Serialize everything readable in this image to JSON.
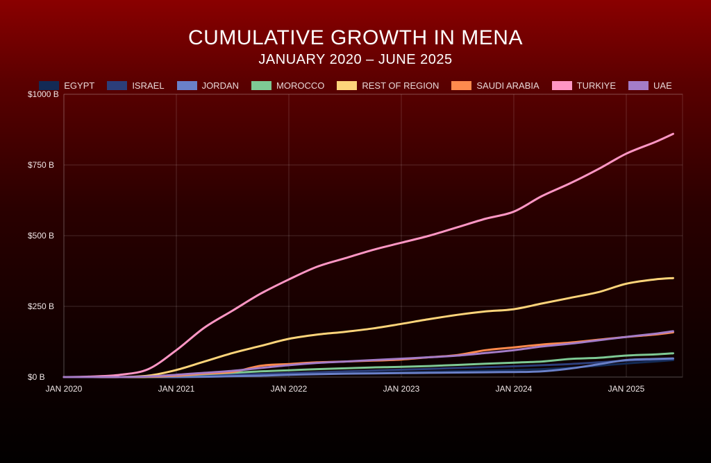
{
  "chart_data": {
    "type": "line",
    "title": "CUMULATIVE GROWTH IN MENA",
    "subtitle": "JANUARY 2020 – JUNE 2025",
    "xlabel": "",
    "ylabel": "",
    "x_unit": "months since Jan 2020",
    "xlim": [
      0,
      66
    ],
    "ylim": [
      0,
      1000
    ],
    "grid": true,
    "legend_position": "top-center",
    "y_ticks": [
      {
        "value": 0,
        "label": "$0 B"
      },
      {
        "value": 250,
        "label": "$250 B"
      },
      {
        "value": 500,
        "label": "$500 B"
      },
      {
        "value": 750,
        "label": "$750 B"
      },
      {
        "value": 1000,
        "label": "$1000 B"
      }
    ],
    "x_ticks": [
      {
        "value": 0,
        "label": "JAN 2020"
      },
      {
        "value": 12,
        "label": "JAN 2021"
      },
      {
        "value": 24,
        "label": "JAN 2022"
      },
      {
        "value": 36,
        "label": "JAN 2023"
      },
      {
        "value": 48,
        "label": "JAN 2024"
      },
      {
        "value": 60,
        "label": "JAN 2025"
      }
    ],
    "x": [
      0,
      3,
      6,
      9,
      12,
      15,
      18,
      21,
      24,
      27,
      30,
      33,
      36,
      39,
      42,
      45,
      48,
      51,
      54,
      57,
      60,
      63,
      65
    ],
    "series": [
      {
        "name": "EGYPT",
        "color": "#132a55",
        "values": [
          0,
          0,
          0,
          0,
          1,
          3,
          5,
          7,
          9,
          11,
          13,
          15,
          17,
          19,
          21,
          23,
          25,
          28,
          33,
          40,
          48,
          55,
          60
        ]
      },
      {
        "name": "ISRAEL",
        "color": "#2c3e7a",
        "values": [
          0,
          0,
          0,
          0,
          2,
          5,
          8,
          11,
          14,
          17,
          20,
          23,
          26,
          29,
          32,
          35,
          38,
          42,
          46,
          52,
          58,
          62,
          64
        ]
      },
      {
        "name": "JORDAN",
        "color": "#6a80c8",
        "values": [
          0,
          0,
          0,
          0,
          0,
          1,
          3,
          5,
          8,
          10,
          12,
          13,
          14,
          15,
          16,
          17,
          18,
          20,
          30,
          45,
          60,
          64,
          66
        ]
      },
      {
        "name": "MOROCCO",
        "color": "#7ec994",
        "values": [
          0,
          0,
          0,
          0,
          5,
          10,
          15,
          20,
          24,
          28,
          31,
          34,
          36,
          39,
          43,
          47,
          51,
          55,
          64,
          68,
          76,
          80,
          84
        ]
      },
      {
        "name": "REST OF REGION",
        "color": "#fdd47a",
        "values": [
          0,
          0,
          0,
          5,
          25,
          55,
          85,
          110,
          135,
          150,
          160,
          172,
          188,
          205,
          220,
          232,
          240,
          260,
          280,
          300,
          330,
          345,
          350
        ]
      },
      {
        "name": "SAUDI ARABIA",
        "color": "#ff8a4e",
        "values": [
          0,
          0,
          0,
          1,
          5,
          12,
          18,
          40,
          46,
          52,
          55,
          58,
          62,
          70,
          78,
          95,
          105,
          115,
          122,
          132,
          142,
          150,
          158
        ]
      },
      {
        "name": "TURKIYE",
        "color": "#ff96c4",
        "values": [
          0,
          2,
          8,
          28,
          95,
          175,
          235,
          295,
          345,
          390,
          420,
          450,
          475,
          500,
          530,
          560,
          585,
          640,
          685,
          735,
          790,
          830,
          860
        ]
      },
      {
        "name": "UAE",
        "color": "#a47cc8",
        "values": [
          0,
          0,
          0,
          2,
          8,
          15,
          22,
          32,
          42,
          50,
          55,
          60,
          65,
          70,
          76,
          85,
          95,
          108,
          118,
          130,
          142,
          153,
          162
        ]
      }
    ]
  }
}
